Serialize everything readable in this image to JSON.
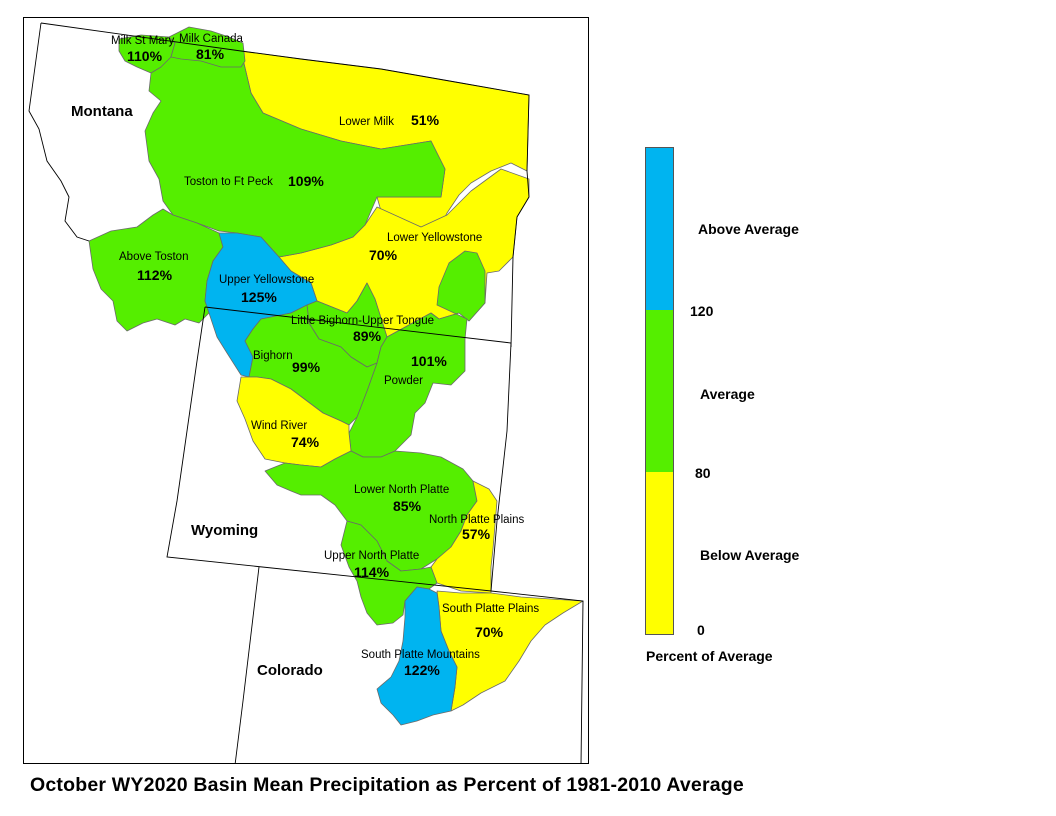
{
  "title": "October WY2020 Basin Mean Precipitation as Percent of 1981-2010 Average",
  "legend": {
    "title": "Percent of Average",
    "classes": [
      {
        "label": "Above Average",
        "min": 120,
        "color": "#00B4F0"
      },
      {
        "label": "Average",
        "min": 80,
        "max": 120,
        "color": "#55EE00"
      },
      {
        "label": "Below Average",
        "min": 0,
        "max": 80,
        "color": "#FFFF00"
      }
    ],
    "ticks": [
      "120",
      "80",
      "0"
    ]
  },
  "states": [
    {
      "name": "Montana"
    },
    {
      "name": "Wyoming"
    },
    {
      "name": "Colorado"
    }
  ],
  "basins": [
    {
      "name": "Milk St Mary",
      "percent": "110%",
      "class": "Average"
    },
    {
      "name": "Milk Canada",
      "percent": "81%",
      "class": "Average"
    },
    {
      "name": "Lower Milk",
      "percent": "51%",
      "class": "Below Average"
    },
    {
      "name": "Toston to Ft Peck",
      "percent": "109%",
      "class": "Average"
    },
    {
      "name": "Lower Yellowstone",
      "percent": "70%",
      "class": "Below Average"
    },
    {
      "name": "Above Toston",
      "percent": "112%",
      "class": "Average"
    },
    {
      "name": "Upper Yellowstone",
      "percent": "125%",
      "class": "Above Average"
    },
    {
      "name": "Little Bighorn-Upper Tongue",
      "percent": "89%",
      "class": "Average"
    },
    {
      "name": "Bighorn",
      "percent": "99%",
      "class": "Average"
    },
    {
      "name": "Powder",
      "percent": "101%",
      "class": "Average"
    },
    {
      "name": "Wind River",
      "percent": "74%",
      "class": "Below Average"
    },
    {
      "name": "Lower North Platte",
      "percent": "85%",
      "class": "Average"
    },
    {
      "name": "North Platte Plains",
      "percent": "57%",
      "class": "Below Average"
    },
    {
      "name": "Upper North Platte",
      "percent": "114%",
      "class": "Average"
    },
    {
      "name": "South Platte Plains",
      "percent": "70%",
      "class": "Below Average"
    },
    {
      "name": "South Platte Mountains",
      "percent": "122%",
      "class": "Above Average"
    }
  ]
}
